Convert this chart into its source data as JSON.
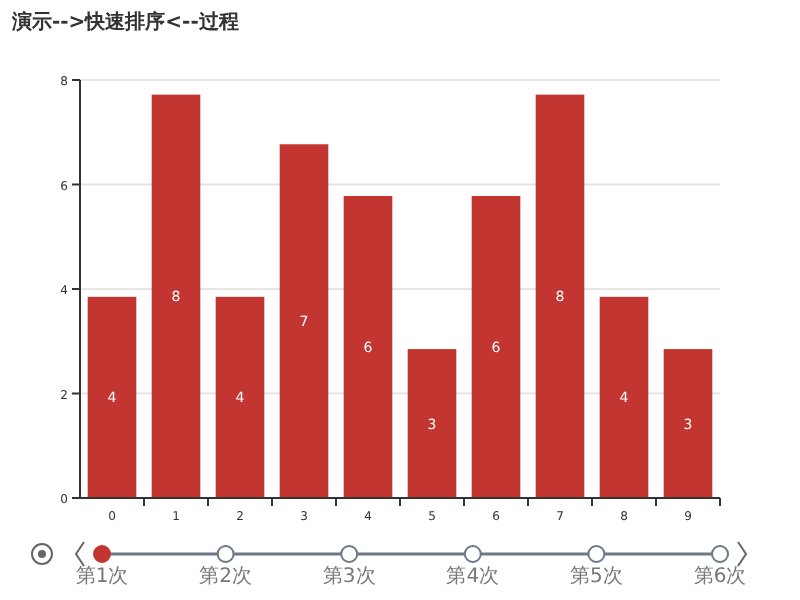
{
  "chart_data": {
    "type": "bar",
    "title": "演示-->快速排序<--过程",
    "categories": [
      "0",
      "1",
      "2",
      "3",
      "4",
      "5",
      "6",
      "7",
      "8",
      "9"
    ],
    "values": [
      3.85,
      7.72,
      3.85,
      6.77,
      5.78,
      2.85,
      5.78,
      7.72,
      3.85,
      2.85
    ],
    "value_labels": [
      "4",
      "8",
      "4",
      "7",
      "6",
      "3",
      "6",
      "8",
      "4",
      "3"
    ],
    "color": "#c23531",
    "ylim": [
      0,
      8
    ],
    "yticks": [
      0,
      2,
      4,
      6,
      8
    ],
    "grid": "y",
    "annotations": [
      "第1次",
      "第2次",
      "第3次",
      "第4次",
      "第5次",
      "第6次"
    ]
  }
}
